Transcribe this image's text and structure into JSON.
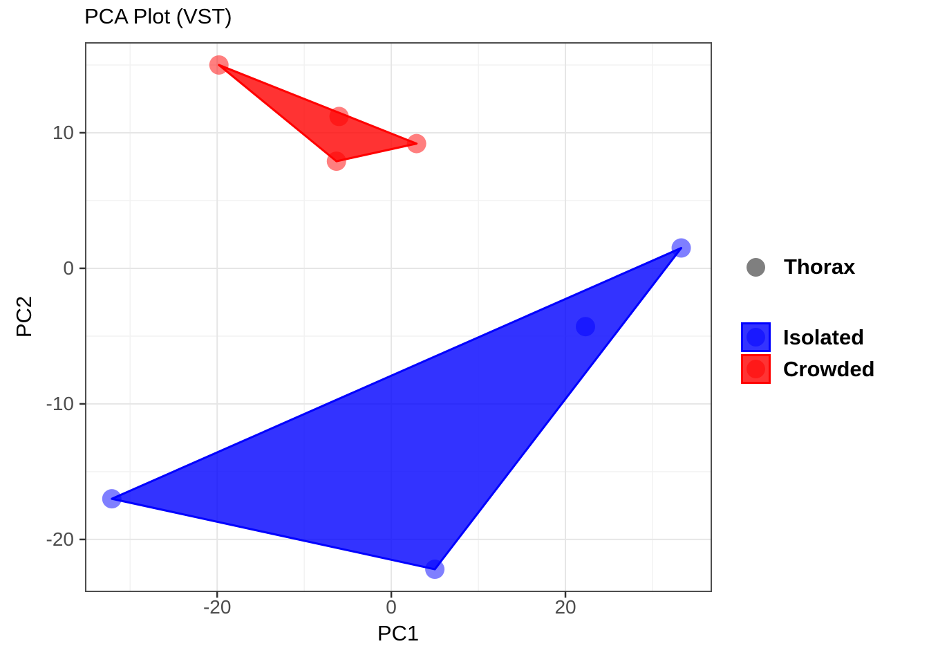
{
  "title": "PCA Plot (VST)",
  "chart_data": {
    "type": "scatter",
    "title": "PCA Plot (VST)",
    "xlabel": "PC1",
    "ylabel": "PC2",
    "xlim": [
      -35.1,
      36.75
    ],
    "ylim": [
      -23.83,
      16.63
    ],
    "x_ticks": [
      -20,
      0,
      20
    ],
    "x_minor_ticks": [
      -30,
      -10,
      10,
      30
    ],
    "y_ticks": [
      -20,
      -10,
      0,
      10
    ],
    "y_minor_ticks": [
      -15,
      -5,
      5,
      15
    ],
    "grid": "major+minor",
    "legend_position": "right",
    "point_alpha": 0.5,
    "hull_alpha": 0.8,
    "point_radius_px": 14,
    "series": [
      {
        "name": "Crowded",
        "color": "#FF0000",
        "points": [
          [
            -19.8,
            15.0
          ],
          [
            -6.0,
            11.2
          ],
          [
            -6.3,
            7.9
          ],
          [
            2.9,
            9.2
          ]
        ],
        "hull": [
          [
            -19.8,
            15.0
          ],
          [
            2.9,
            9.2
          ],
          [
            -6.3,
            7.9
          ]
        ]
      },
      {
        "name": "Isolated",
        "color": "#0000FF",
        "points": [
          [
            33.3,
            1.5
          ],
          [
            22.3,
            -4.3
          ],
          [
            -32.1,
            -17.0
          ],
          [
            5.0,
            -22.2
          ]
        ],
        "hull": [
          [
            33.3,
            1.5
          ],
          [
            5.0,
            -22.2
          ],
          [
            -32.1,
            -17.0
          ]
        ]
      }
    ]
  },
  "legend": {
    "shape_label": "Thorax",
    "shape_color": "#7F7F7F",
    "items": [
      {
        "label": "Isolated",
        "color": "#0000FF"
      },
      {
        "label": "Crowded",
        "color": "#FF0000"
      }
    ]
  },
  "colors": {
    "background": "#FFFFFF",
    "panel_border": "#4D4D4D",
    "grid_major": "#E6E6E6",
    "grid_minor": "#F2F2F2",
    "tick_mark": "#333333",
    "tick_label_color": "#4D4D4D",
    "text": "#000000"
  }
}
